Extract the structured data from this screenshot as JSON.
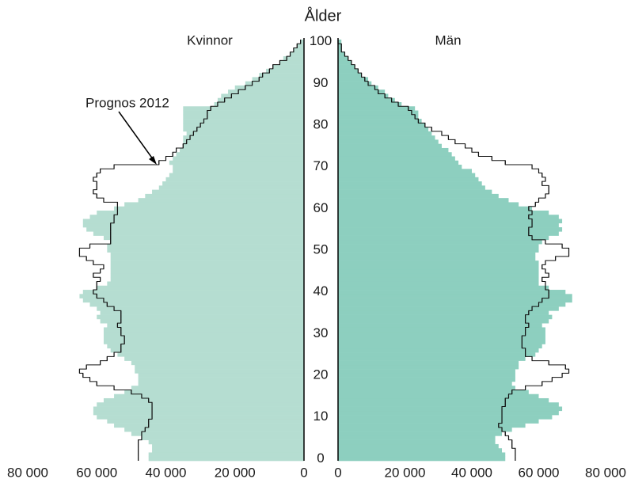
{
  "chart_data": {
    "type": "pyramid",
    "title": "Ålder",
    "y": [
      0,
      1,
      2,
      3,
      4,
      5,
      6,
      7,
      8,
      9,
      10,
      11,
      12,
      13,
      14,
      15,
      16,
      17,
      18,
      19,
      20,
      21,
      22,
      23,
      24,
      25,
      26,
      27,
      28,
      29,
      30,
      31,
      32,
      33,
      34,
      35,
      36,
      37,
      38,
      39,
      40,
      41,
      42,
      43,
      44,
      45,
      46,
      47,
      48,
      49,
      50,
      51,
      52,
      53,
      54,
      55,
      56,
      57,
      58,
      59,
      60,
      61,
      62,
      63,
      64,
      65,
      66,
      67,
      68,
      69,
      70,
      71,
      72,
      73,
      74,
      75,
      76,
      77,
      78,
      79,
      80,
      81,
      82,
      83,
      84,
      85,
      86,
      87,
      88,
      89,
      90,
      91,
      92,
      93,
      94,
      95,
      96,
      97,
      98,
      99,
      100
    ],
    "ylim": [
      -0.5,
      100.5
    ],
    "yticks": [
      0,
      10,
      20,
      30,
      40,
      50,
      60,
      70,
      80,
      90,
      100
    ],
    "xlim": [
      0,
      80000
    ],
    "xticks": [
      {
        "value": 80000,
        "label": "80 000"
      },
      {
        "value": 60000,
        "label": "60 000"
      },
      {
        "value": 40000,
        "label": "40 000"
      },
      {
        "value": 20000,
        "label": "20 000"
      },
      0
    ],
    "x2lim": [
      0,
      80000
    ],
    "x2ticks": [
      0,
      {
        "value": 20000,
        "label": "20 000"
      },
      {
        "value": 40000,
        "label": "40 000"
      },
      {
        "value": 60000,
        "label": "60 000"
      },
      {
        "value": 80000,
        "label": "80 000"
      }
    ],
    "annotation": "Prognos 2012",
    "series": [
      {
        "name": "Kvinnor",
        "color": "#b5ddd1",
        "side": "left",
        "values": [
          45000,
          45000,
          44000,
          44000,
          45000,
          47000,
          50000,
          52000,
          55000,
          57000,
          60000,
          61000,
          61000,
          60000,
          58000,
          55000,
          52000,
          50000,
          48000,
          48000,
          48000,
          49000,
          49000,
          50000,
          52000,
          54000,
          56000,
          57000,
          58000,
          58000,
          58000,
          58000,
          57000,
          59000,
          60000,
          59000,
          60000,
          62000,
          64000,
          65000,
          64000,
          60000,
          57000,
          56000,
          56000,
          56000,
          56000,
          56000,
          56000,
          56000,
          57000,
          57000,
          56000,
          58000,
          61000,
          63000,
          64000,
          64000,
          62000,
          60000,
          55000,
          52000,
          48000,
          46000,
          44000,
          42000,
          41000,
          40000,
          39000,
          38000,
          38000,
          39000,
          38000,
          37000,
          36000,
          35000,
          35000,
          35000,
          34000,
          35000,
          35000,
          35000,
          35000,
          35000,
          35000,
          26000,
          25000,
          24000,
          22000,
          20000,
          17000,
          15000,
          13000,
          11000,
          9000,
          7000,
          6000,
          4000,
          3000,
          2000,
          1000
        ],
        "prognosis": [
          48000,
          48000,
          48000,
          48000,
          48000,
          47000,
          47000,
          46000,
          45000,
          45000,
          44000,
          44000,
          44000,
          44000,
          45000,
          47000,
          50000,
          55000,
          60000,
          62000,
          64000,
          65000,
          63000,
          59000,
          57000,
          55000,
          53000,
          53000,
          52000,
          52000,
          53000,
          53000,
          54000,
          53000,
          53000,
          53000,
          55000,
          57000,
          58000,
          60000,
          61000,
          60000,
          60000,
          59000,
          61000,
          59000,
          58000,
          61000,
          63000,
          65000,
          65000,
          62000,
          56000,
          56000,
          56000,
          56000,
          56000,
          55000,
          55000,
          54000,
          54000,
          54000,
          58000,
          60000,
          61000,
          60000,
          60000,
          61000,
          60000,
          59000,
          55000,
          42000,
          40000,
          38000,
          37000,
          35000,
          34000,
          33000,
          32000,
          31000,
          30000,
          29000,
          28000,
          28000,
          27000,
          25000,
          23000,
          21000,
          19000,
          17000,
          15000,
          13000,
          12000,
          10000,
          9000,
          7000,
          5000,
          4000,
          3000,
          2000,
          1000
        ]
      },
      {
        "name": "Män",
        "color": "#8dcfbf",
        "side": "right",
        "values": [
          50000,
          50000,
          49000,
          48000,
          47000,
          47000,
          49000,
          52000,
          56000,
          60000,
          64000,
          66000,
          67000,
          66000,
          63000,
          60000,
          57000,
          53000,
          52000,
          53000,
          53000,
          53000,
          54000,
          54000,
          56000,
          59000,
          60000,
          61000,
          62000,
          62000,
          62000,
          62000,
          61000,
          63000,
          64000,
          63000,
          66000,
          68000,
          70000,
          70000,
          68000,
          63000,
          60000,
          60000,
          60000,
          60000,
          60000,
          60000,
          59000,
          59000,
          60000,
          60000,
          61000,
          63000,
          66000,
          67000,
          66000,
          67000,
          66000,
          63000,
          58000,
          54000,
          51000,
          48000,
          46000,
          44000,
          43000,
          42000,
          41000,
          40000,
          37000,
          36000,
          35000,
          34000,
          33000,
          31000,
          30000,
          29000,
          28000,
          27000,
          26000,
          25000,
          24000,
          24000,
          23000,
          19000,
          17000,
          15000,
          14000,
          12000,
          10000,
          9000,
          7000,
          6000,
          5000,
          4000,
          3000,
          2000,
          1000,
          1000,
          1000
        ],
        "prognosis": [
          53000,
          53000,
          53000,
          52000,
          52000,
          51000,
          50000,
          49000,
          48000,
          49000,
          49000,
          49000,
          49000,
          50000,
          50000,
          51000,
          52000,
          56000,
          61000,
          64000,
          67000,
          69000,
          68000,
          63000,
          58000,
          56000,
          56000,
          55000,
          55000,
          55000,
          56000,
          56000,
          57000,
          56000,
          56000,
          57000,
          58000,
          60000,
          61000,
          63000,
          63000,
          62000,
          62000,
          61000,
          63000,
          62000,
          61000,
          62000,
          65000,
          69000,
          69000,
          67000,
          62000,
          58000,
          57000,
          57000,
          58000,
          58000,
          57000,
          58000,
          57000,
          59000,
          60000,
          62000,
          63000,
          63000,
          61000,
          62000,
          61000,
          60000,
          58000,
          50000,
          46000,
          42000,
          40000,
          38000,
          35000,
          33000,
          31000,
          28000,
          26000,
          24000,
          23000,
          22000,
          21000,
          18000,
          16000,
          14000,
          12000,
          11000,
          9000,
          8000,
          7000,
          6000,
          5000,
          4000,
          3000,
          2000,
          1000,
          1000,
          0
        ]
      }
    ]
  }
}
